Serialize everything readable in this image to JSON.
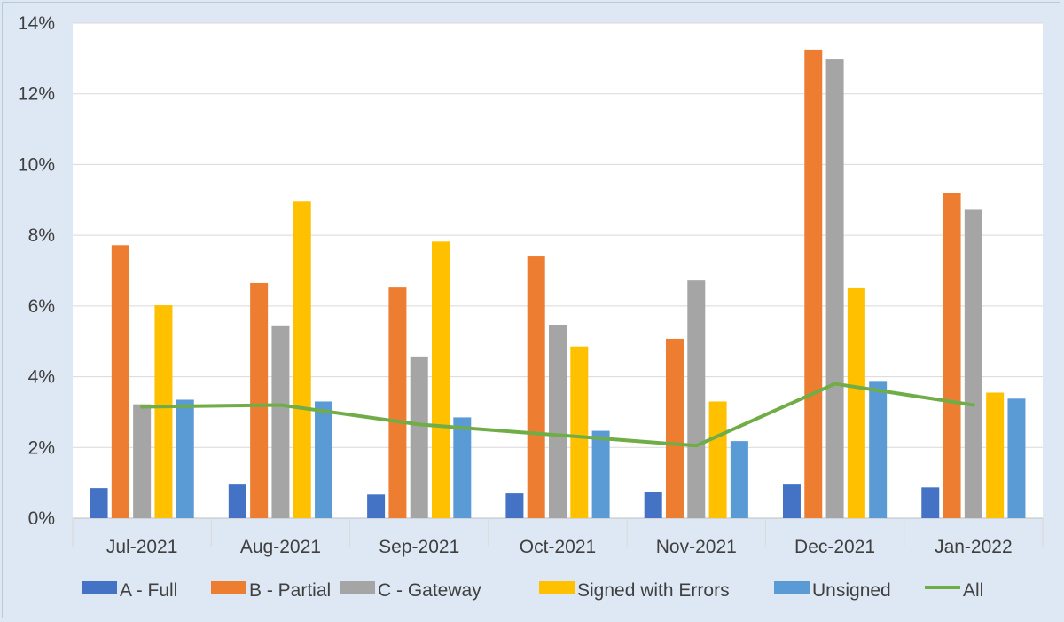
{
  "chart_data": {
    "type": "bar",
    "title": "",
    "xlabel": "",
    "ylabel": "",
    "ylim": [
      0,
      14
    ],
    "y_ticks": [
      "0%",
      "2%",
      "4%",
      "6%",
      "8%",
      "10%",
      "12%",
      "14%"
    ],
    "y_tick_values": [
      0,
      2,
      4,
      6,
      8,
      10,
      12,
      14
    ],
    "grid": true,
    "legend_position": "bottom",
    "categories": [
      "Jul-2021",
      "Aug-2021",
      "Sep-2021",
      "Oct-2021",
      "Nov-2021",
      "Dec-2021",
      "Jan-2022"
    ],
    "series": [
      {
        "name": "A - Full",
        "type": "bar",
        "color": "#4472c4",
        "values": [
          0.85,
          0.95,
          0.67,
          0.7,
          0.75,
          0.95,
          0.87
        ]
      },
      {
        "name": "B - Partial",
        "type": "bar",
        "color": "#ed7d31",
        "values": [
          7.72,
          6.65,
          6.52,
          7.4,
          5.07,
          13.25,
          9.2
        ]
      },
      {
        "name": "C - Gateway",
        "type": "bar",
        "color": "#a5a5a5",
        "values": [
          3.22,
          5.45,
          4.57,
          5.47,
          6.72,
          12.97,
          8.72
        ]
      },
      {
        "name": "Signed with Errors",
        "type": "bar",
        "color": "#ffc000",
        "values": [
          6.02,
          8.95,
          7.82,
          4.85,
          3.3,
          6.5,
          3.55
        ]
      },
      {
        "name": "Unsigned",
        "type": "bar",
        "color": "#5b9bd5",
        "values": [
          3.35,
          3.3,
          2.85,
          2.47,
          2.18,
          3.88,
          3.38
        ]
      },
      {
        "name": "All",
        "type": "line",
        "color": "#70ad47",
        "values": [
          3.15,
          3.2,
          2.65,
          2.35,
          2.05,
          3.8,
          3.2
        ]
      }
    ]
  }
}
